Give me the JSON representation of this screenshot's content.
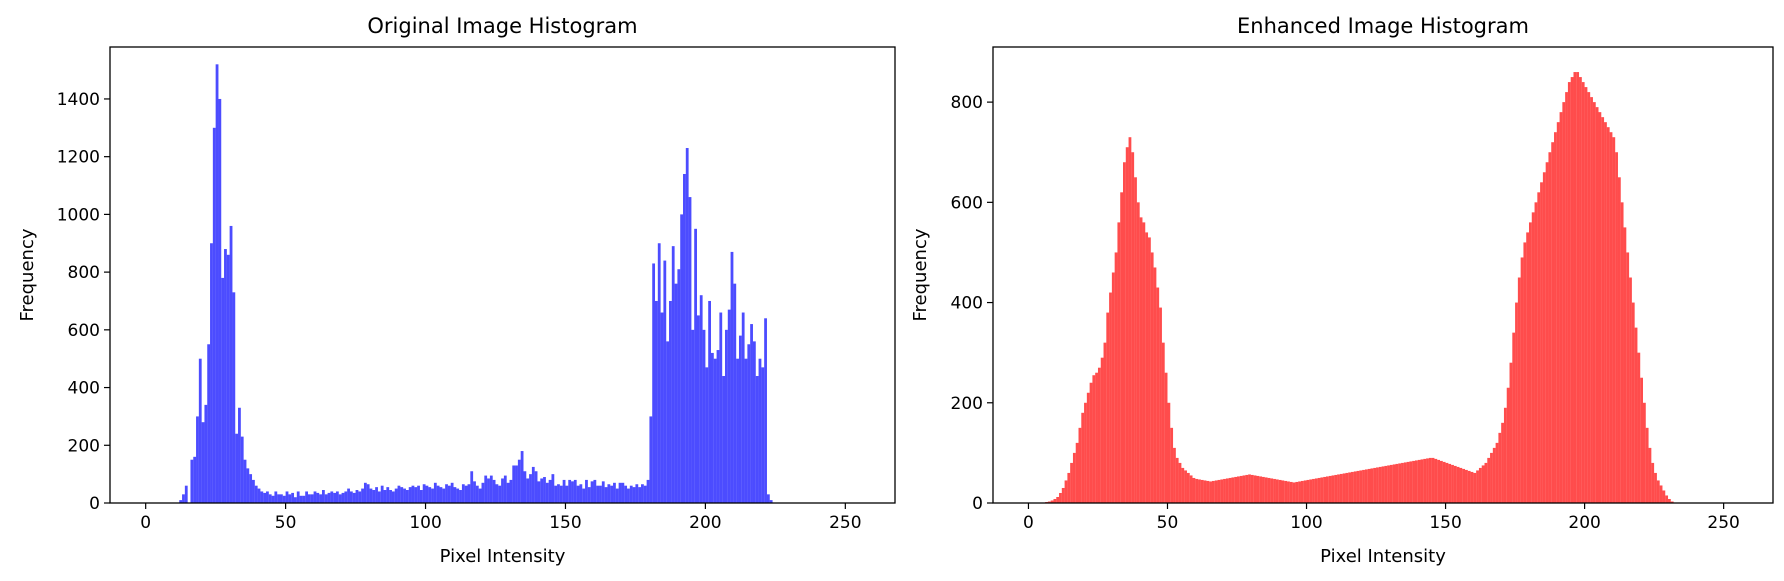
{
  "chart_data": [
    {
      "type": "bar",
      "title": "Original Image Histogram",
      "xlabel": "Pixel Intensity",
      "ylabel": "Frequency",
      "xlim": [
        -12.75,
        267.75
      ],
      "ylim": [
        0,
        1580
      ],
      "xticks": [
        0,
        50,
        100,
        150,
        200,
        250
      ],
      "yticks": [
        0,
        200,
        400,
        600,
        800,
        1000,
        1200,
        1400
      ],
      "color": "#0000ff",
      "alpha": 0.7,
      "series": [
        {
          "x_start": 0,
          "bin_width": 1,
          "values": [
            0,
            0,
            0,
            0,
            0,
            0,
            0,
            0,
            0,
            0,
            0,
            0,
            10,
            30,
            60,
            0,
            150,
            160,
            300,
            500,
            280,
            340,
            550,
            900,
            1300,
            1520,
            1400,
            780,
            880,
            860,
            960,
            730,
            240,
            330,
            230,
            150,
            120,
            100,
            80,
            60,
            50,
            40,
            35,
            40,
            30,
            25,
            40,
            30,
            30,
            25,
            40,
            30,
            35,
            20,
            40,
            25,
            25,
            40,
            30,
            30,
            40,
            35,
            30,
            45,
            30,
            35,
            40,
            35,
            40,
            30,
            35,
            40,
            50,
            40,
            35,
            45,
            40,
            50,
            70,
            65,
            50,
            45,
            55,
            40,
            60,
            45,
            55,
            45,
            40,
            50,
            60,
            55,
            50,
            45,
            55,
            60,
            55,
            60,
            45,
            65,
            60,
            55,
            50,
            70,
            60,
            55,
            50,
            65,
            60,
            70,
            55,
            50,
            45,
            65,
            60,
            65,
            110,
            75,
            60,
            50,
            70,
            95,
            85,
            95,
            80,
            65,
            60,
            85,
            95,
            70,
            80,
            130,
            130,
            150,
            180,
            110,
            85,
            100,
            125,
            110,
            75,
            85,
            90,
            70,
            80,
            100,
            60,
            65,
            60,
            80,
            60,
            80,
            75,
            80,
            60,
            65,
            50,
            80,
            55,
            75,
            80,
            60,
            60,
            75,
            55,
            65,
            60,
            70,
            50,
            70,
            70,
            60,
            50,
            60,
            55,
            65,
            55,
            65,
            60,
            80,
            300,
            830,
            700,
            900,
            660,
            840,
            560,
            700,
            890,
            760,
            810,
            1000,
            1140,
            1230,
            1060,
            600,
            950,
            650,
            720,
            600,
            470,
            700,
            520,
            500,
            530,
            660,
            440,
            600,
            670,
            870,
            760,
            500,
            580,
            660,
            500,
            550,
            620,
            560,
            440,
            500,
            470,
            640,
            30,
            10,
            0,
            0,
            0,
            0,
            0,
            0,
            0,
            0,
            0,
            0,
            0,
            0,
            0,
            0,
            0
          ]
        }
      ]
    },
    {
      "type": "bar",
      "title": "Enhanced Image Histogram",
      "xlabel": "Pixel Intensity",
      "ylabel": "Frequency",
      "xlim": [
        -12.75,
        267.75
      ],
      "ylim": [
        0,
        910
      ],
      "xticks": [
        0,
        50,
        100,
        150,
        200,
        250
      ],
      "yticks": [
        0,
        200,
        400,
        600,
        800
      ],
      "color": "#ff0000",
      "alpha": 0.7,
      "series": [
        {
          "x_start": 0,
          "bin_width": 1,
          "values": [
            0,
            0,
            0,
            0,
            0,
            1,
            2,
            3,
            5,
            8,
            12,
            20,
            30,
            45,
            60,
            80,
            100,
            120,
            150,
            180,
            200,
            220,
            240,
            255,
            260,
            270,
            290,
            320,
            380,
            420,
            460,
            500,
            560,
            620,
            680,
            710,
            730,
            700,
            650,
            600,
            570,
            560,
            540,
            530,
            500,
            470,
            430,
            390,
            320,
            260,
            200,
            150,
            110,
            90,
            80,
            70,
            65,
            60,
            55,
            50,
            48,
            47,
            46,
            45,
            44,
            43,
            44,
            45,
            46,
            47,
            48,
            49,
            50,
            51,
            52,
            53,
            54,
            55,
            56,
            57,
            56,
            55,
            54,
            53,
            52,
            51,
            50,
            49,
            48,
            47,
            46,
            45,
            44,
            43,
            42,
            41,
            42,
            43,
            44,
            45,
            46,
            47,
            48,
            49,
            50,
            51,
            52,
            53,
            54,
            55,
            56,
            57,
            58,
            59,
            60,
            61,
            62,
            63,
            64,
            65,
            66,
            67,
            68,
            69,
            70,
            71,
            72,
            73,
            74,
            75,
            76,
            77,
            78,
            79,
            80,
            81,
            82,
            83,
            84,
            85,
            86,
            87,
            88,
            89,
            90,
            90,
            88,
            86,
            84,
            82,
            80,
            78,
            76,
            74,
            72,
            70,
            68,
            66,
            64,
            62,
            60,
            65,
            70,
            75,
            80,
            90,
            100,
            110,
            120,
            140,
            160,
            190,
            230,
            280,
            340,
            400,
            450,
            490,
            520,
            540,
            560,
            580,
            600,
            620,
            640,
            660,
            680,
            700,
            720,
            740,
            760,
            780,
            800,
            820,
            840,
            850,
            860,
            860,
            850,
            840,
            830,
            820,
            810,
            800,
            790,
            780,
            770,
            760,
            750,
            740,
            730,
            700,
            650,
            600,
            550,
            500,
            450,
            400,
            350,
            300,
            250,
            200,
            150,
            110,
            80,
            60,
            45,
            35,
            25,
            15,
            8,
            3,
            1,
            0,
            0,
            0,
            0,
            0,
            0,
            0,
            0,
            0,
            0,
            0,
            0,
            0,
            0,
            0,
            0,
            0,
            0,
            0,
            0,
            0,
            0,
            0,
            0
          ]
        }
      ]
    }
  ]
}
